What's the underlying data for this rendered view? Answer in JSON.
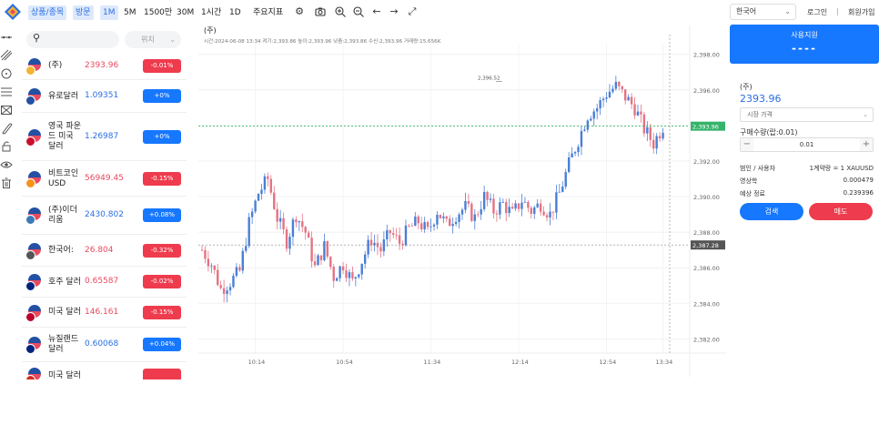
{
  "toolbar": {
    "tabs": [
      {
        "label": "상품/종목",
        "active": true
      },
      {
        "label": "방문",
        "active": true
      },
      {
        "label": "1M",
        "active": true
      },
      {
        "label": "5M",
        "active": false
      },
      {
        "label": "1500만",
        "active": false
      },
      {
        "label": "30M",
        "active": false
      },
      {
        "label": "1시간",
        "active": false
      },
      {
        "label": "1D",
        "active": false
      },
      {
        "label": "주요지표",
        "active": false
      }
    ],
    "icons": [
      "gear-icon",
      "camera-icon",
      "zoom-in-icon",
      "zoom-out-icon",
      "arrow-left-icon",
      "arrow-right-icon",
      "expand-icon"
    ],
    "language": "한국어",
    "login": "로그인",
    "separator": "|",
    "signup": "회원가입"
  },
  "drawing_tools": [
    "trend-line-icon",
    "multi-line-icon",
    "circle-icon",
    "horizontal-lines-icon",
    "envelope-icon",
    "magnet-icon",
    "lock-icon",
    "eye-icon",
    "trash-icon"
  ],
  "watchlist": {
    "search_placeholder": "",
    "sort_label": "위치",
    "items": [
      {
        "symbol": "(주)",
        "price": "2393.96",
        "change": "-0.01%",
        "dir": "dn",
        "flag_color": "#f2b632"
      },
      {
        "symbol": "유로달러",
        "price": "1.09351",
        "change": "+0%",
        "dir": "up",
        "flag_color": "#2450a4"
      },
      {
        "symbol": "영국 파운드 미국 달러",
        "price": "1.26987",
        "change": "+0%",
        "dir": "up",
        "flag_color": "#c8102e"
      },
      {
        "symbol": "비트코인 USD",
        "price": "56949.45",
        "change": "-0.15%",
        "dir": "dn",
        "flag_color": "#f7931a"
      },
      {
        "symbol": "(주)이더리움",
        "price": "2430.802",
        "change": "+0.08%",
        "dir": "up",
        "flag_color": "#3c7ab5"
      },
      {
        "symbol": "한국어:",
        "price": "26.804",
        "change": "-0.32%",
        "dir": "dn",
        "flag_color": "#555555"
      },
      {
        "symbol": "호주 달러",
        "price": "0.65587",
        "change": "-0.02%",
        "dir": "dn",
        "flag_color": "#00247d"
      },
      {
        "symbol": "미국 달러",
        "price": "146.161",
        "change": "-0.15%",
        "dir": "dn",
        "flag_color": "#bc002d"
      },
      {
        "symbol": "뉴질랜드 달러",
        "price": "0.60068",
        "change": "+0.04%",
        "dir": "up",
        "flag_color": "#00247d"
      },
      {
        "symbol": "미국 달러",
        "price": "",
        "change": "",
        "dir": "dn",
        "flag_color": "#d52b1e"
      }
    ]
  },
  "chart": {
    "title": "(주)",
    "info_line": "시간:2024-06-08 13:34    켜기:2,393.86    높이:2,393.96    낮춤:2,393.86    수신:2,393.96    거래량:15.656K"
  },
  "chart_data": {
    "type": "candlestick",
    "x_ticks": [
      "10:14",
      "10:54",
      "11:34",
      "12:14",
      "12:54",
      "13:34"
    ],
    "y_ticks": [
      "2,398.00",
      "2,396.00",
      "2,394.00",
      "2,392.00",
      "2,390.00",
      "2,388.00",
      "2,386.00",
      "2,384.00",
      "2,382.00"
    ],
    "ylim": [
      2381.2,
      2398.6
    ],
    "current_price": 2393.96,
    "current_price_label": "2,393.96",
    "crosshair_price": 2387.28,
    "crosshair_price_label": "2,387.28",
    "high_annotation": "2,396.52",
    "high_value": 2396.52,
    "up_color": "#4a7fd6",
    "down_color": "#e57383",
    "closes_path": [
      [
        0,
        2387.0
      ],
      [
        3,
        2386.2
      ],
      [
        6,
        2384.8
      ],
      [
        9,
        2385.2
      ],
      [
        12,
        2385.8
      ],
      [
        15,
        2388.5
      ],
      [
        18,
        2390.2
      ],
      [
        21,
        2391.0
      ],
      [
        24,
        2388.8
      ],
      [
        27,
        2387.5
      ],
      [
        30,
        2389.0
      ],
      [
        33,
        2388.0
      ],
      [
        36,
        2386.0
      ],
      [
        39,
        2387.2
      ],
      [
        42,
        2385.5
      ],
      [
        45,
        2386.2
      ],
      [
        48,
        2385.2
      ],
      [
        51,
        2386.4
      ],
      [
        54,
        2387.6
      ],
      [
        57,
        2387.0
      ],
      [
        60,
        2388.0
      ],
      [
        63,
        2387.4
      ],
      [
        66,
        2388.2
      ],
      [
        69,
        2388.6
      ],
      [
        72,
        2388.0
      ],
      [
        75,
        2389.2
      ],
      [
        78,
        2388.4
      ],
      [
        81,
        2389.0
      ],
      [
        84,
        2389.4
      ],
      [
        87,
        2388.8
      ],
      [
        90,
        2390.0
      ],
      [
        93,
        2389.2
      ],
      [
        96,
        2389.6
      ],
      [
        99,
        2389.0
      ],
      [
        102,
        2389.8
      ],
      [
        105,
        2389.2
      ],
      [
        108,
        2389.6
      ],
      [
        111,
        2389.0
      ],
      [
        114,
        2390.2
      ],
      [
        117,
        2391.8
      ],
      [
        120,
        2393.2
      ],
      [
        123,
        2394.6
      ],
      [
        126,
        2395.0
      ],
      [
        129,
        2395.8
      ],
      [
        132,
        2396.2
      ],
      [
        135,
        2395.6
      ],
      [
        138,
        2395.0
      ],
      [
        141,
        2393.8
      ],
      [
        144,
        2393.0
      ],
      [
        147,
        2393.96
      ]
    ]
  },
  "order_panel": {
    "header_title": "사용지원",
    "header_value": "----",
    "symbol": "(주)",
    "price": "2393.96",
    "order_type": "시장 가격",
    "quantity_label": "구매수량(랍:0.01)",
    "quantity_value": "0.01",
    "minus": "−",
    "plus": "+",
    "rows": [
      {
        "k": "범인 / 사용자",
        "v": "1계약랑 = 1 XAUUSD"
      },
      {
        "k": "영상학",
        "v": "0.000479"
      },
      {
        "k": "예상 정료",
        "v": "0.239396"
      }
    ],
    "buy_label": "검색",
    "sell_label": "매도"
  }
}
